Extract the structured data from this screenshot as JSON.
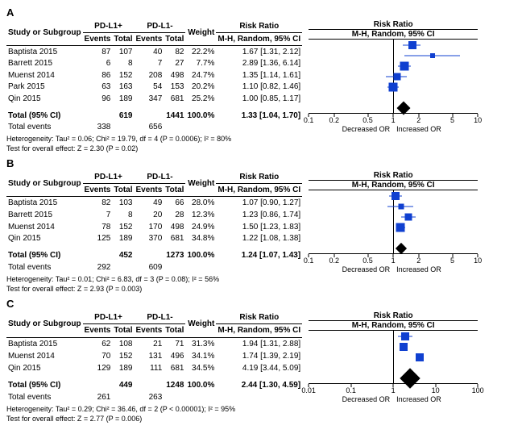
{
  "colors": {
    "marker": "#1040d0",
    "diamond": "#000000",
    "line": "#000000"
  },
  "headers": {
    "study": "Study or Subgroup",
    "g1": "PD-L1+",
    "g2": "PD-L1-",
    "ev": "Events",
    "tot": "Total",
    "wt": "Weight",
    "rr": "Risk Ratio",
    "rrci": "M-H, Random, 95% CI",
    "plot": "Risk Ratio"
  },
  "axis_labels": {
    "dec": "Decreased OR",
    "inc": "Increased OR"
  },
  "common_labels": {
    "total_ci": "Total (95% CI)",
    "total_events": "Total events",
    "het_prefix": "Heterogeneity: ",
    "test_prefix": "Test for overall effect: "
  },
  "panels": [
    {
      "label": "A",
      "rows": [
        {
          "study": "Baptista 2015",
          "e1": 87,
          "t1": 107,
          "e2": 40,
          "t2": 82,
          "wt": "22.2%",
          "rr": "1.67 [1.31, 2.12]",
          "pt": 1.67,
          "lo": 1.31,
          "hi": 2.12,
          "sz": 10
        },
        {
          "study": "Barrett 2015",
          "e1": 6,
          "t1": 8,
          "e2": 7,
          "t2": 27,
          "wt": "7.7%",
          "rr": "2.89 [1.36, 6.14]",
          "pt": 2.89,
          "lo": 1.36,
          "hi": 6.14,
          "sz": 6
        },
        {
          "study": "Muenst 2014",
          "e1": 86,
          "t1": 152,
          "e2": 208,
          "t2": 498,
          "wt": "24.7%",
          "rr": "1.35 [1.14, 1.61]",
          "pt": 1.35,
          "lo": 1.14,
          "hi": 1.61,
          "sz": 11
        },
        {
          "study": "Park 2015",
          "e1": 63,
          "t1": 163,
          "e2": 54,
          "t2": 153,
          "wt": "20.2%",
          "rr": "1.10 [0.82, 1.46]",
          "pt": 1.1,
          "lo": 0.82,
          "hi": 1.46,
          "sz": 9
        },
        {
          "study": "Qin 2015",
          "e1": 96,
          "t1": 189,
          "e2": 347,
          "t2": 681,
          "wt": "25.2%",
          "rr": "1.00 [0.85, 1.17]",
          "pt": 1.0,
          "lo": 0.85,
          "hi": 1.17,
          "sz": 11
        }
      ],
      "total": {
        "t1": 619,
        "t2": 1441,
        "wt": "100.0%",
        "rr": "1.33 [1.04, 1.70]",
        "pt": 1.33,
        "lo": 1.04,
        "hi": 1.7,
        "e1": 338,
        "e2": 656
      },
      "het": "Tau² = 0.06; Chi² = 19.79, df = 4 (P = 0.0006); I² = 80%",
      "test": "Z = 2.30 (P = 0.02)",
      "ticks": [
        0.1,
        0.2,
        0.5,
        1,
        2,
        5,
        10
      ],
      "xmin": 0.1,
      "xmax": 10,
      "diamond_w": 12
    },
    {
      "label": "B",
      "rows": [
        {
          "study": "Baptista 2015",
          "e1": 82,
          "t1": 103,
          "e2": 49,
          "t2": 66,
          "wt": "28.0%",
          "rr": "1.07 [0.90, 1.27]",
          "pt": 1.07,
          "lo": 0.9,
          "hi": 1.27,
          "sz": 10
        },
        {
          "study": "Barrett 2015",
          "e1": 7,
          "t1": 8,
          "e2": 20,
          "t2": 28,
          "wt": "12.3%",
          "rr": "1.23 [0.86, 1.74]",
          "pt": 1.23,
          "lo": 0.86,
          "hi": 1.74,
          "sz": 7
        },
        {
          "study": "Muenst 2014",
          "e1": 78,
          "t1": 152,
          "e2": 170,
          "t2": 498,
          "wt": "24.9%",
          "rr": "1.50 [1.23, 1.83]",
          "pt": 1.5,
          "lo": 1.23,
          "hi": 1.83,
          "sz": 9
        },
        {
          "study": "Qin 2015",
          "e1": 125,
          "t1": 189,
          "e2": 370,
          "t2": 681,
          "wt": "34.8%",
          "rr": "1.22 [1.08, 1.38]",
          "pt": 1.22,
          "lo": 1.08,
          "hi": 1.38,
          "sz": 11
        }
      ],
      "total": {
        "t1": 452,
        "t2": 1273,
        "wt": "100.0%",
        "rr": "1.24 [1.07, 1.43]",
        "pt": 1.24,
        "lo": 1.07,
        "hi": 1.43,
        "e1": 292,
        "e2": 609
      },
      "het": "Tau² = 0.01; Chi² = 6.83, df = 3 (P = 0.08); I² = 56%",
      "test": "Z = 2.93 (P = 0.003)",
      "ticks": [
        0.1,
        0.2,
        0.5,
        1,
        2,
        5,
        10
      ],
      "xmin": 0.1,
      "xmax": 10,
      "diamond_w": 10
    },
    {
      "label": "C",
      "rows": [
        {
          "study": "Baptista 2015",
          "e1": 62,
          "t1": 108,
          "e2": 21,
          "t2": 71,
          "wt": "31.3%",
          "rr": "1.94 [1.31, 2.88]",
          "pt": 1.94,
          "lo": 1.31,
          "hi": 2.88,
          "sz": 10
        },
        {
          "study": "Muenst 2014",
          "e1": 70,
          "t1": 152,
          "e2": 131,
          "t2": 496,
          "wt": "34.1%",
          "rr": "1.74 [1.39, 2.19]",
          "pt": 1.74,
          "lo": 1.39,
          "hi": 2.19,
          "sz": 10
        },
        {
          "study": "Qin 2015",
          "e1": 129,
          "t1": 189,
          "e2": 111,
          "t2": 681,
          "wt": "34.5%",
          "rr": "4.19 [3.44, 5.09]",
          "pt": 4.19,
          "lo": 3.44,
          "hi": 5.09,
          "sz": 10
        }
      ],
      "total": {
        "t1": 449,
        "t2": 1248,
        "wt": "100.0%",
        "rr": "2.44 [1.30, 4.59]",
        "pt": 2.44,
        "lo": 1.3,
        "hi": 4.59,
        "e1": 261,
        "e2": 263
      },
      "het": "Tau² = 0.29; Chi² = 36.46, df = 2 (P < 0.00001); I² = 95%",
      "test": "Z = 2.77 (P = 0.006)",
      "ticks": [
        0.01,
        0.1,
        1,
        10,
        100
      ],
      "xmin": 0.01,
      "xmax": 100,
      "diamond_w": 18
    }
  ]
}
